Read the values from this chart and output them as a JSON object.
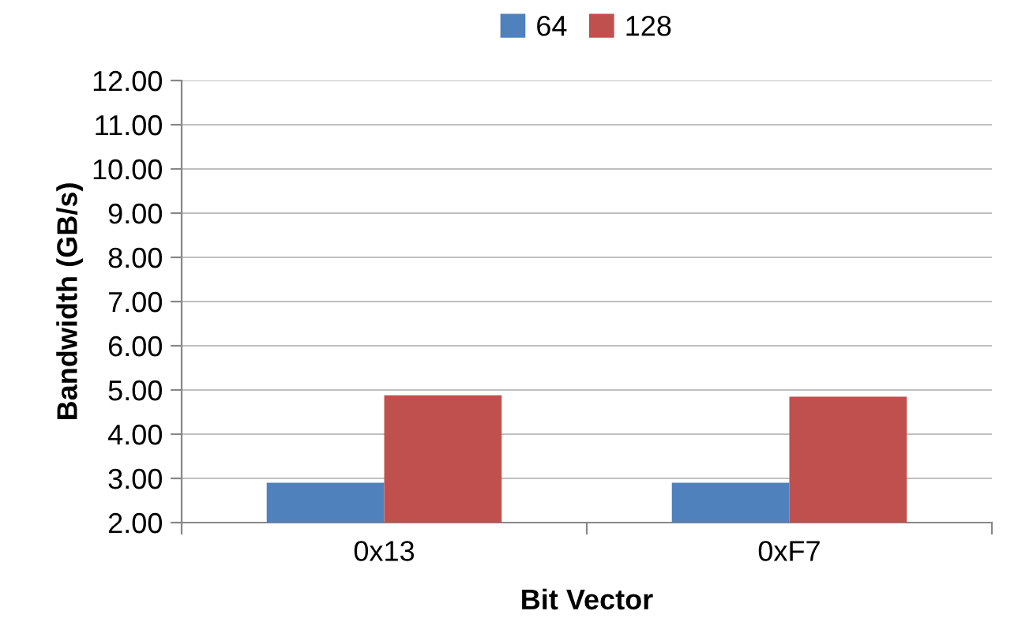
{
  "chart_data": {
    "type": "bar",
    "xlabel": "Bit Vector",
    "ylabel": "Bandwidth (GB/s)",
    "categories": [
      "0x13",
      "0xF7"
    ],
    "series": [
      {
        "name": "64",
        "color": "#4f81bd",
        "values": [
          2.9,
          2.9
        ]
      },
      {
        "name": "128",
        "color": "#c0504d",
        "values": [
          4.88,
          4.85
        ]
      }
    ],
    "ylim": [
      2,
      12
    ],
    "yticks": [
      {
        "value": 2,
        "label": "2.00"
      },
      {
        "value": 3,
        "label": "3.00"
      },
      {
        "value": 4,
        "label": "4.00"
      },
      {
        "value": 5,
        "label": "5.00"
      },
      {
        "value": 6,
        "label": "6.00"
      },
      {
        "value": 7,
        "label": "7.00"
      },
      {
        "value": 8,
        "label": "8.00"
      },
      {
        "value": 9,
        "label": "9.00"
      },
      {
        "value": 10,
        "label": "10.00"
      },
      {
        "value": 11,
        "label": "11.00"
      },
      {
        "value": 12,
        "label": "12.00"
      }
    ],
    "grid": "y",
    "legend": "top"
  }
}
